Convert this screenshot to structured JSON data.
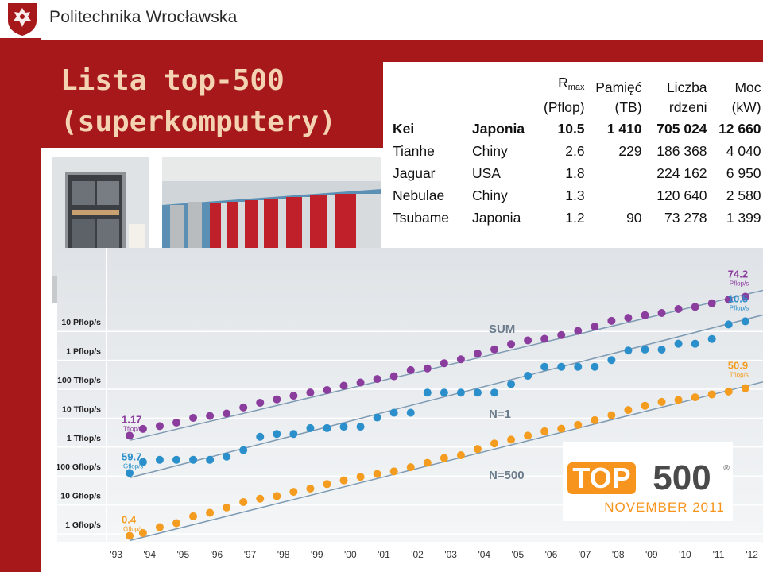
{
  "header": {
    "university": "Politechnika Wrocławska"
  },
  "slide": {
    "title_line1": "Lista top-500",
    "title_line2": "(superkomputery)"
  },
  "table": {
    "headers": [
      {
        "line1": "R",
        "sub": "max",
        "line2": "(Pflop)"
      },
      {
        "line1": "Pamięć",
        "line2": "(TB)"
      },
      {
        "line1": "Liczba",
        "line2": "rdzeni"
      },
      {
        "line1": "Moc",
        "line2": "(kW)"
      }
    ],
    "rows": [
      {
        "name": "Kei",
        "country": "Japonia",
        "rmax": "10.5",
        "memory": "1 410",
        "cores": "705 024",
        "power": "12 660",
        "bold": true
      },
      {
        "name": "Tianhe",
        "country": "Chiny",
        "rmax": "2.6",
        "memory": "229",
        "cores": "186 368",
        "power": "4 040",
        "bold": false
      },
      {
        "name": "Jaguar",
        "country": "USA",
        "rmax": "1.8",
        "memory": "",
        "cores": "224 162",
        "power": "6 950",
        "bold": false
      },
      {
        "name": "Nebulae",
        "country": "Chiny",
        "rmax": "1.3",
        "memory": "",
        "cores": "120 640",
        "power": "2 580",
        "bold": false
      },
      {
        "name": "Tsubame",
        "country": "Japonia",
        "rmax": "1.2",
        "memory": "90",
        "cores": "73 278",
        "power": "1 399",
        "bold": false
      }
    ]
  },
  "logo": {
    "text_top": "TOP",
    "text_num": "500",
    "registered": "®",
    "date": "NOVEMBER 2011"
  },
  "chart_data": {
    "type": "scatter",
    "y_scale": "log",
    "y_unit": "Gflop/s",
    "ylim": [
      1,
      100000000
    ],
    "y_ticks": [
      {
        "value": 1,
        "label": "1 Gflop/s"
      },
      {
        "value": 10,
        "label": "10 Gflop/s"
      },
      {
        "value": 100,
        "label": "100 Gflop/s"
      },
      {
        "value": 1000,
        "label": "1 Tflop/s"
      },
      {
        "value": 10000,
        "label": "10 Tflop/s"
      },
      {
        "value": 100000,
        "label": "100 Tflop/s"
      },
      {
        "value": 1000000,
        "label": "1 Pflop/s"
      },
      {
        "value": 10000000,
        "label": "10 Pflop/s"
      }
    ],
    "x_ticks": [
      "'93",
      "'94",
      "'95",
      "'96",
      "'97",
      "'98",
      "'99",
      "'00",
      "'01",
      "'02",
      "'03",
      "'04",
      "'05",
      "'06",
      "'07",
      "'08",
      "'09",
      "'10",
      "'11",
      "'12"
    ],
    "x_range": [
      1993.0,
      2012.0
    ],
    "series": [
      {
        "name": "SUM",
        "color": "#8b3d9e",
        "start_label": {
          "value": "1.17",
          "unit": "Tflop/s"
        },
        "end_label": {
          "value": "74.2",
          "unit": "Pflop/s"
        },
        "points": [
          [
            1993.5,
            1170
          ],
          [
            1993.9,
            2000
          ],
          [
            1994.4,
            2500
          ],
          [
            1994.9,
            3300
          ],
          [
            1995.4,
            4800
          ],
          [
            1995.9,
            5600
          ],
          [
            1996.4,
            6800
          ],
          [
            1996.9,
            11000
          ],
          [
            1997.4,
            16000
          ],
          [
            1997.9,
            21000
          ],
          [
            1998.4,
            28000
          ],
          [
            1998.9,
            36000
          ],
          [
            1999.4,
            44000
          ],
          [
            1999.9,
            62000
          ],
          [
            2000.4,
            80000
          ],
          [
            2000.9,
            106000
          ],
          [
            2001.4,
            132000
          ],
          [
            2001.9,
            215000
          ],
          [
            2002.4,
            246000
          ],
          [
            2002.9,
            373000
          ],
          [
            2003.4,
            510000
          ],
          [
            2003.9,
            805000
          ],
          [
            2004.4,
            1120000
          ],
          [
            2004.9,
            1690000
          ],
          [
            2005.4,
            2290000
          ],
          [
            2005.9,
            2600000
          ],
          [
            2006.4,
            3500000
          ],
          [
            2006.9,
            4900000
          ],
          [
            2007.4,
            6900000
          ],
          [
            2007.9,
            10900000
          ],
          [
            2008.4,
            13800000
          ],
          [
            2008.9,
            17000000
          ],
          [
            2009.4,
            20300000
          ],
          [
            2009.9,
            27900000
          ],
          [
            2010.4,
            33000000
          ],
          [
            2010.9,
            44000000
          ],
          [
            2011.4,
            58800000
          ],
          [
            2011.9,
            74200000
          ]
        ]
      },
      {
        "name": "N=1",
        "color": "#2a8fca",
        "start_label": {
          "value": "59.7",
          "unit": "Gflop/s"
        },
        "end_label": {
          "value": "10.5",
          "unit": "Pflop/s"
        },
        "points": [
          [
            1993.5,
            59.7
          ],
          [
            1993.9,
            143
          ],
          [
            1994.4,
            170
          ],
          [
            1994.9,
            170
          ],
          [
            1995.4,
            170
          ],
          [
            1995.9,
            170
          ],
          [
            1996.4,
            220
          ],
          [
            1996.9,
            368
          ],
          [
            1997.4,
            1068
          ],
          [
            1997.9,
            1338
          ],
          [
            1998.4,
            1338
          ],
          [
            1998.9,
            2121
          ],
          [
            1999.4,
            2121
          ],
          [
            1999.9,
            2379
          ],
          [
            2000.4,
            2379
          ],
          [
            2000.9,
            4938
          ],
          [
            2001.4,
            7226
          ],
          [
            2001.9,
            7226
          ],
          [
            2002.4,
            35860
          ],
          [
            2002.9,
            35860
          ],
          [
            2003.4,
            35860
          ],
          [
            2003.9,
            35860
          ],
          [
            2004.4,
            35860
          ],
          [
            2004.9,
            70720
          ],
          [
            2005.4,
            136800
          ],
          [
            2005.9,
            280600
          ],
          [
            2006.4,
            280600
          ],
          [
            2006.9,
            280600
          ],
          [
            2007.4,
            280600
          ],
          [
            2007.9,
            478200
          ],
          [
            2008.4,
            1026000
          ],
          [
            2008.9,
            1105000
          ],
          [
            2009.4,
            1105000
          ],
          [
            2009.9,
            1759000
          ],
          [
            2010.4,
            1759000
          ],
          [
            2010.9,
            2566000
          ],
          [
            2011.4,
            8162000
          ],
          [
            2011.9,
            10510000
          ]
        ]
      },
      {
        "name": "N=500",
        "color": "#f39c1f",
        "start_label": {
          "value": "0.4",
          "unit": "Gflop/s"
        },
        "end_label": {
          "value": "50.9",
          "unit": "Tflop/s"
        },
        "points": [
          [
            1993.5,
            0.4
          ],
          [
            1993.9,
            0.5
          ],
          [
            1994.4,
            0.8
          ],
          [
            1994.9,
            1.1
          ],
          [
            1995.4,
            1.9
          ],
          [
            1995.9,
            2.5
          ],
          [
            1996.4,
            3.8
          ],
          [
            1996.9,
            5.9
          ],
          [
            1997.4,
            7.7
          ],
          [
            1997.9,
            9.5
          ],
          [
            1998.4,
            13.3
          ],
          [
            1998.9,
            17.2
          ],
          [
            1999.4,
            24.7
          ],
          [
            1999.9,
            33.1
          ],
          [
            2000.4,
            43.8
          ],
          [
            2000.9,
            55.1
          ],
          [
            2001.4,
            67.8
          ],
          [
            2001.9,
            94.3
          ],
          [
            2002.4,
            134
          ],
          [
            2002.9,
            196
          ],
          [
            2003.4,
            245
          ],
          [
            2003.9,
            403
          ],
          [
            2004.4,
            624
          ],
          [
            2004.9,
            851
          ],
          [
            2005.4,
            1166
          ],
          [
            2005.9,
            1646
          ],
          [
            2006.4,
            2026
          ],
          [
            2006.9,
            2737
          ],
          [
            2007.4,
            4005
          ],
          [
            2007.9,
            5929
          ],
          [
            2008.4,
            9000
          ],
          [
            2008.9,
            12640
          ],
          [
            2009.4,
            17090
          ],
          [
            2009.9,
            20050
          ],
          [
            2010.4,
            24670
          ],
          [
            2010.9,
            31110
          ],
          [
            2011.4,
            39100
          ],
          [
            2011.9,
            50900
          ]
        ]
      }
    ]
  }
}
